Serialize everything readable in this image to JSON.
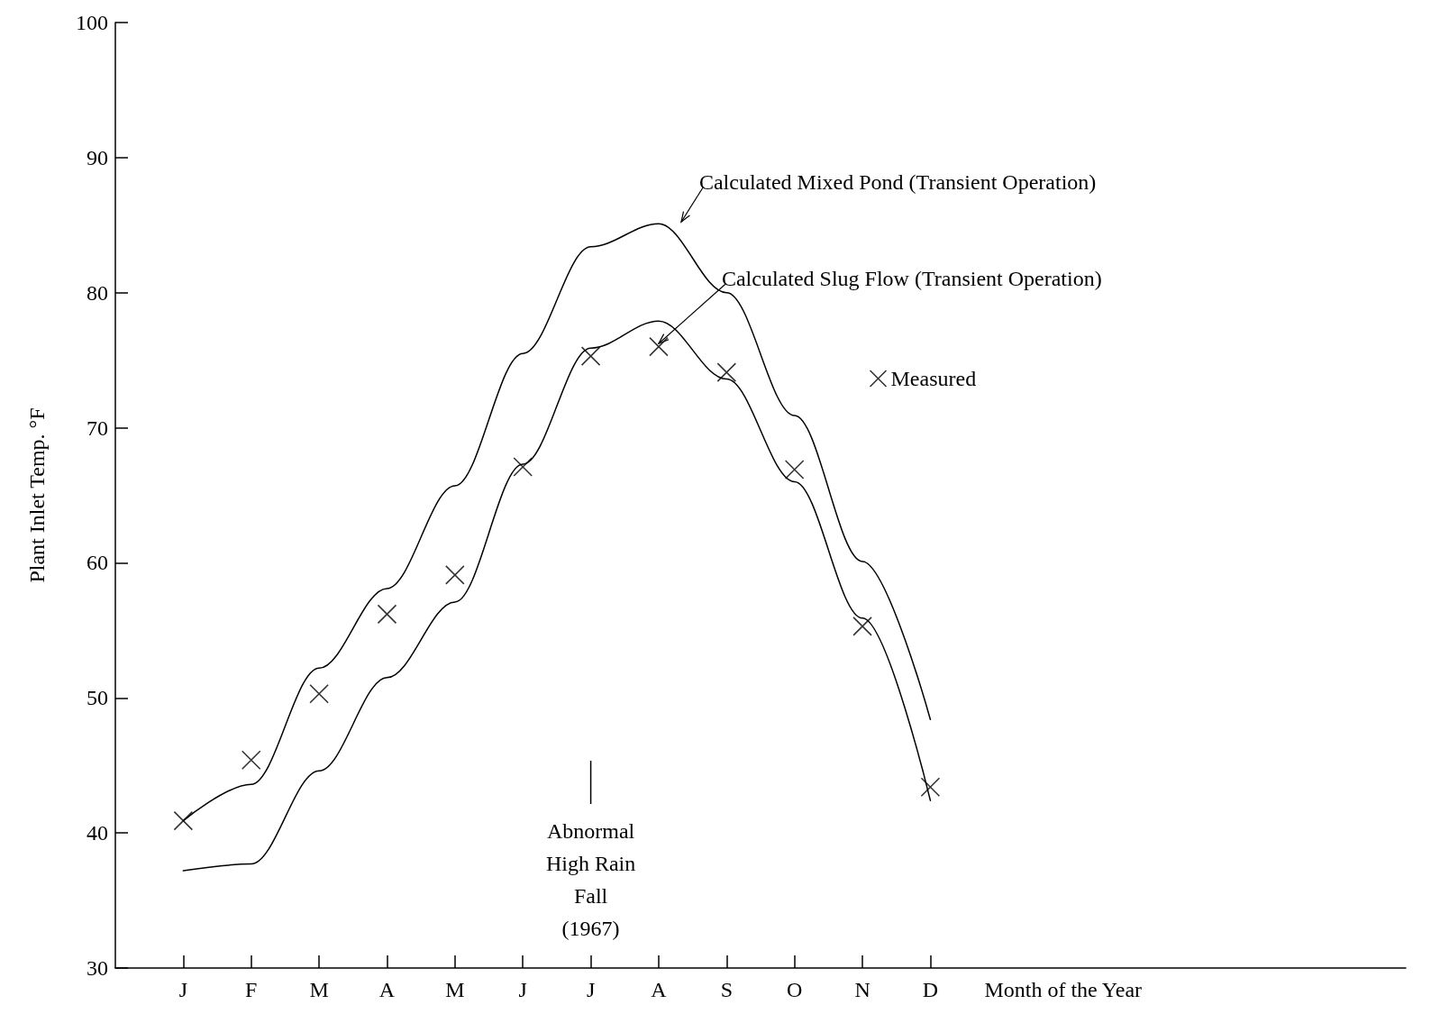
{
  "chart_data": {
    "type": "line",
    "xlabel": "Month of the Year",
    "ylabel": "Plant Inlet Temp. °F",
    "categories": [
      null,
      "J",
      "F",
      "M",
      "A",
      "M",
      "J",
      "J",
      "A",
      "S",
      "O",
      "N",
      "D",
      null,
      null,
      null,
      null,
      null,
      null,
      null
    ],
    "ylim": [
      30,
      100
    ],
    "yticks": [
      30,
      40,
      50,
      60,
      70,
      80,
      90,
      100
    ],
    "grid": false,
    "legend": "right",
    "series": [
      {
        "name": "Calculated Mixed Pond (Transient Operation)",
        "color": "#000000",
        "marker": "none",
        "values": [
          null,
          40.9,
          43.6,
          52.2,
          58.1,
          65.7,
          75.5,
          83.4,
          85.1,
          80,
          70.9,
          60.1,
          48.4,
          null,
          null,
          null,
          null,
          null,
          null,
          null
        ]
      },
      {
        "name": "Calculated Slug Flow (Transient Operation)",
        "color": "#000000",
        "marker": "none",
        "values": [
          null,
          37.2,
          37.7,
          44.6,
          51.5,
          57.1,
          67.3,
          75.9,
          77.9,
          73.6,
          66,
          55.9,
          42.4,
          null,
          null,
          null,
          null,
          null,
          null,
          null
        ]
      },
      {
        "name": "Measured",
        "type": "scatter",
        "color": "#000000",
        "marker": "cross",
        "values": [
          null,
          40.9,
          45.4,
          50.3,
          56.2,
          59.1,
          67.1,
          75.3,
          76,
          74.1,
          66.9,
          55.3,
          43.4,
          null,
          null,
          null,
          null,
          null,
          null,
          null
        ]
      }
    ],
    "annotations": [
      "Abnormal\nHigh Rain\nFall\n(1967)"
    ]
  }
}
